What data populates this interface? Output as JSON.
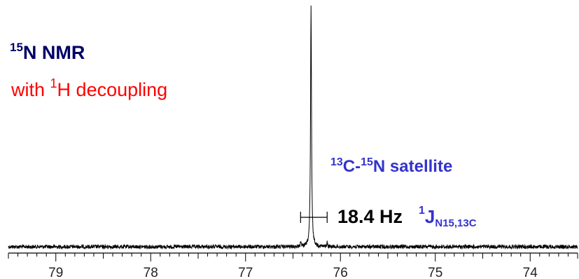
{
  "chart_data": {
    "type": "line",
    "title": {
      "sup": "15",
      "text": "N NMR",
      "color": "#000066"
    },
    "subtitle": {
      "prefix": "with ",
      "sup": "1",
      "suffix": "H decoupling",
      "color": "#ff0000"
    },
    "x_axis": {
      "reversed": true,
      "range": [
        79.5,
        73.5
      ],
      "ticks": [
        "79",
        "78",
        "77",
        "76",
        "75",
        "74"
      ],
      "tick_values": [
        79,
        78,
        77,
        76,
        75,
        74
      ],
      "minor_step": 0.1,
      "major_step": 1
    },
    "peaks": [
      {
        "label": "main",
        "ppm": 76.31,
        "relative_height": 1.0
      },
      {
        "label": "satellite-left",
        "ppm": 76.42,
        "relative_height": 0.02
      },
      {
        "label": "satellite-right",
        "ppm": 76.14,
        "relative_height": 0.018
      }
    ],
    "annotations": {
      "satellite": {
        "sup1": "13",
        "part1": "C-",
        "sup2": "15",
        "part2": "N satellite",
        "color": "#3333cc"
      },
      "coupling": {
        "value": "18.4 Hz",
        "color": "#000000"
      },
      "j_label": {
        "sup": "1",
        "main": "J",
        "sub": "N15,13C",
        "color": "#3333cc"
      },
      "bracket": {
        "from_ppm": 76.42,
        "to_ppm": 76.14
      }
    },
    "grid": false,
    "line_color": "#000000"
  }
}
